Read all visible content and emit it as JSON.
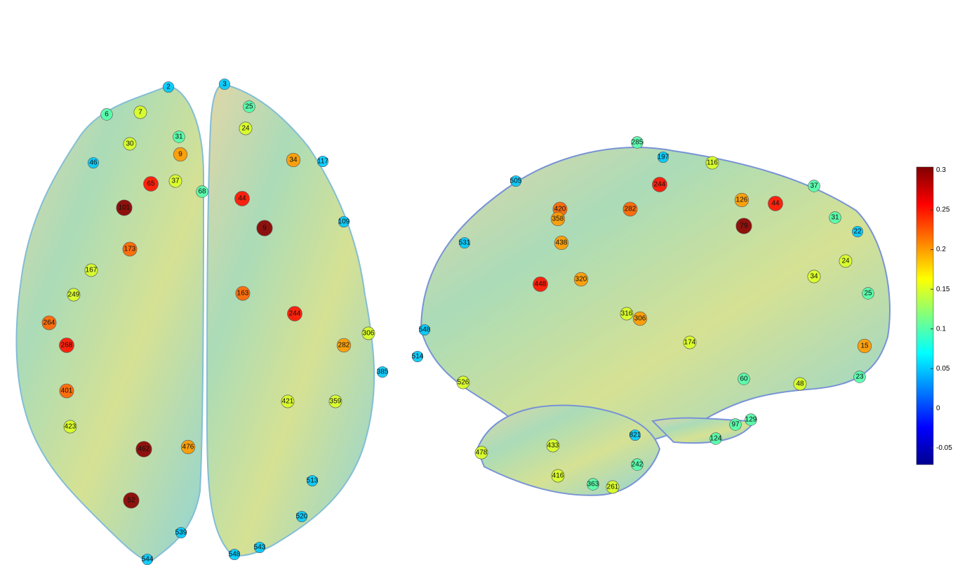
{
  "colorbar": {
    "lim": [
      -0.071,
      0.304
    ],
    "ticks": [
      0.3,
      0.25,
      0.2,
      0.15,
      0.1,
      0.05,
      0,
      -0.05
    ]
  },
  "axial_view": {
    "nodes": [
      {
        "label": "2",
        "value": 0.05
      },
      {
        "label": "6",
        "value": 0.1
      },
      {
        "label": "7",
        "value": 0.15
      },
      {
        "label": "31",
        "value": 0.1
      },
      {
        "label": "30",
        "value": 0.15
      },
      {
        "label": "9",
        "value": 0.2
      },
      {
        "label": "46",
        "value": 0.05
      },
      {
        "label": "65",
        "value": 0.25
      },
      {
        "label": "37",
        "value": 0.15
      },
      {
        "label": "68",
        "value": 0.1
      },
      {
        "label": "101",
        "value": 0.3
      },
      {
        "label": "173",
        "value": 0.22
      },
      {
        "label": "167",
        "value": 0.15
      },
      {
        "label": "249",
        "value": 0.15
      },
      {
        "label": "264",
        "value": 0.22
      },
      {
        "label": "268",
        "value": 0.25
      },
      {
        "label": "401",
        "value": 0.22
      },
      {
        "label": "423",
        "value": 0.15
      },
      {
        "label": "462",
        "value": 0.3
      },
      {
        "label": "476",
        "value": 0.2
      },
      {
        "label": "52",
        "value": 0.3
      },
      {
        "label": "544",
        "value": 0.05
      },
      {
        "label": "539",
        "value": 0.05
      },
      {
        "label": "244",
        "value": 0.25
      },
      {
        "label": "282",
        "value": 0.2
      },
      {
        "label": "306",
        "value": 0.15
      },
      {
        "label": "385",
        "value": 0.05
      },
      {
        "label": "359",
        "value": 0.15
      },
      {
        "label": "421",
        "value": 0.15
      },
      {
        "label": "44",
        "value": 0.25
      },
      {
        "label": "9",
        "value": 0.3
      },
      {
        "label": "24",
        "value": 0.15
      },
      {
        "label": "34",
        "value": 0.2
      },
      {
        "label": "117",
        "value": 0.05
      },
      {
        "label": "109",
        "value": 0.05
      },
      {
        "label": "163",
        "value": 0.22
      },
      {
        "label": "513",
        "value": 0.05
      },
      {
        "label": "520",
        "value": 0.05
      },
      {
        "label": "543",
        "value": 0.05
      },
      {
        "label": "548",
        "value": 0.05
      },
      {
        "label": "3",
        "value": 0.05
      },
      {
        "label": "25",
        "value": 0.1
      }
    ]
  },
  "sagittal_view": {
    "nodes": [
      {
        "label": "285",
        "value": 0.1
      },
      {
        "label": "197",
        "value": 0.05
      },
      {
        "label": "244",
        "value": 0.25
      },
      {
        "label": "116",
        "value": 0.15
      },
      {
        "label": "505",
        "value": 0.05
      },
      {
        "label": "44",
        "value": 0.25
      },
      {
        "label": "37",
        "value": 0.1
      },
      {
        "label": "31",
        "value": 0.1
      },
      {
        "label": "22",
        "value": 0.05
      },
      {
        "label": "79",
        "value": 0.3
      },
      {
        "label": "126",
        "value": 0.2
      },
      {
        "label": "282",
        "value": 0.22
      },
      {
        "label": "420",
        "value": 0.22
      },
      {
        "label": "358",
        "value": 0.2
      },
      {
        "label": "438",
        "value": 0.2
      },
      {
        "label": "448",
        "value": 0.25
      },
      {
        "label": "320",
        "value": 0.2
      },
      {
        "label": "316",
        "value": 0.15
      },
      {
        "label": "306",
        "value": 0.2
      },
      {
        "label": "174",
        "value": 0.15
      },
      {
        "label": "24",
        "value": 0.15
      },
      {
        "label": "34",
        "value": 0.15
      },
      {
        "label": "25",
        "value": 0.1
      },
      {
        "label": "15",
        "value": 0.2
      },
      {
        "label": "531",
        "value": 0.05
      },
      {
        "label": "548",
        "value": 0.05
      },
      {
        "label": "514",
        "value": 0.05
      },
      {
        "label": "526",
        "value": 0.15
      },
      {
        "label": "48",
        "value": 0.15
      },
      {
        "label": "23",
        "value": 0.1
      },
      {
        "label": "60",
        "value": 0.1
      },
      {
        "label": "97",
        "value": 0.1
      },
      {
        "label": "129",
        "value": 0.1
      },
      {
        "label": "124",
        "value": 0.1
      },
      {
        "label": "821",
        "value": 0.05
      },
      {
        "label": "478",
        "value": 0.15
      },
      {
        "label": "433",
        "value": 0.15
      },
      {
        "label": "416",
        "value": 0.15
      },
      {
        "label": "261",
        "value": 0.15
      },
      {
        "label": "363",
        "value": 0.1
      },
      {
        "label": "242",
        "value": 0.1
      }
    ]
  }
}
